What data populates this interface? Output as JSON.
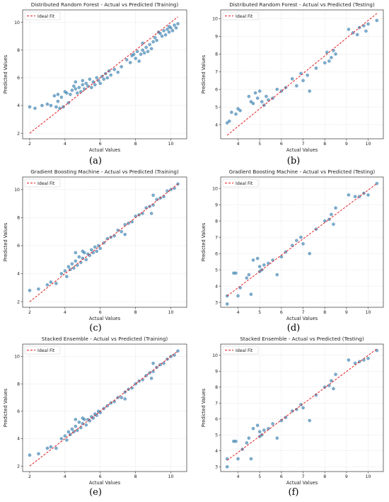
{
  "legend_label": "Ideal Fit",
  "colors": {
    "points": "#2b7bb0",
    "ideal_fit": "#e41a1c"
  },
  "chart_data": [
    {
      "type": "scatter",
      "panel_label": "(a)",
      "title": "Distributed Random Forest - Actual vs Predicted (Training)",
      "xlabel": "Actual Values",
      "ylabel": "Predicted Values",
      "xlim": [
        1.6,
        10.9
      ],
      "ylim": [
        1.6,
        10.9
      ],
      "xticks": [
        2,
        4,
        6,
        8,
        10
      ],
      "yticks": [
        2,
        4,
        6,
        8,
        10
      ],
      "grid": true,
      "legend": "top-left",
      "ideal_fit": [
        [
          2,
          2
        ],
        [
          10.4,
          10.4
        ]
      ],
      "points": [
        [
          2.0,
          3.9
        ],
        [
          2.3,
          3.8
        ],
        [
          2.7,
          4.0
        ],
        [
          3.0,
          4.1
        ],
        [
          3.2,
          4.0
        ],
        [
          3.5,
          3.9
        ],
        [
          3.6,
          4.3
        ],
        [
          3.7,
          3.8
        ],
        [
          3.9,
          3.9
        ],
        [
          3.4,
          4.7
        ],
        [
          3.6,
          4.8
        ],
        [
          3.8,
          4.6
        ],
        [
          4.0,
          5.0
        ],
        [
          4.1,
          4.9
        ],
        [
          4.2,
          4.2
        ],
        [
          4.3,
          4.8
        ],
        [
          4.4,
          5.1
        ],
        [
          4.5,
          5.4
        ],
        [
          4.6,
          5.2
        ],
        [
          4.6,
          5.7
        ],
        [
          4.7,
          4.9
        ],
        [
          4.8,
          5.3
        ],
        [
          4.9,
          5.0
        ],
        [
          5.0,
          5.5
        ],
        [
          5.0,
          5.8
        ],
        [
          5.1,
          5.2
        ],
        [
          5.2,
          5.6
        ],
        [
          5.3,
          5.4
        ],
        [
          5.4,
          5.9
        ],
        [
          5.5,
          5.3
        ],
        [
          5.6,
          5.7
        ],
        [
          5.7,
          5.5
        ],
        [
          5.8,
          6.0
        ],
        [
          5.9,
          5.8
        ],
        [
          6.0,
          5.6
        ],
        [
          6.1,
          6.1
        ],
        [
          6.2,
          5.9
        ],
        [
          6.3,
          6.3
        ],
        [
          6.4,
          6.0
        ],
        [
          6.5,
          6.5
        ],
        [
          6.6,
          6.2
        ],
        [
          6.8,
          6.6
        ],
        [
          7.0,
          6.4
        ],
        [
          7.2,
          6.8
        ],
        [
          7.5,
          7.3
        ],
        [
          7.7,
          7.1
        ],
        [
          7.8,
          7.6
        ],
        [
          8.0,
          7.4
        ],
        [
          8.1,
          7.9
        ],
        [
          8.2,
          7.2
        ],
        [
          8.3,
          7.7
        ],
        [
          8.4,
          8.0
        ],
        [
          8.5,
          7.8
        ],
        [
          8.6,
          8.2
        ],
        [
          8.7,
          7.9
        ],
        [
          8.8,
          8.4
        ],
        [
          8.9,
          8.1
        ],
        [
          9.0,
          8.6
        ],
        [
          9.1,
          8.9
        ],
        [
          9.2,
          8.7
        ],
        [
          9.4,
          9.2
        ],
        [
          9.5,
          9.0
        ],
        [
          9.6,
          9.4
        ],
        [
          9.7,
          9.1
        ],
        [
          9.8,
          9.5
        ],
        [
          9.9,
          9.3
        ],
        [
          10.0,
          9.6
        ],
        [
          10.1,
          9.4
        ],
        [
          10.2,
          9.8
        ],
        [
          10.3,
          9.6
        ],
        [
          10.4,
          9.9
        ],
        [
          9.3,
          9.3
        ],
        [
          9.9,
          9.7
        ],
        [
          8.4,
          8.5
        ],
        [
          7.9,
          7.7
        ]
      ]
    },
    {
      "type": "scatter",
      "panel_label": "(b)",
      "title": "Distributed Random Forest - Actual vs Predicted (Testing)",
      "xlabel": "Actual Values",
      "ylabel": "Predicted Values",
      "xlim": [
        3.2,
        10.7
      ],
      "ylim": [
        3.2,
        10.5
      ],
      "xticks": [
        4,
        5,
        6,
        7,
        8,
        9,
        10
      ],
      "yticks": [
        4,
        5,
        6,
        7,
        8,
        9,
        10
      ],
      "grid": true,
      "legend": "top-left",
      "ideal_fit": [
        [
          3.5,
          3.4
        ],
        [
          10.4,
          10.3
        ]
      ],
      "points": [
        [
          3.5,
          4.1
        ],
        [
          3.6,
          4.2
        ],
        [
          3.7,
          4.7
        ],
        [
          3.9,
          4.6
        ],
        [
          4.0,
          4.9
        ],
        [
          4.1,
          4.8
        ],
        [
          4.5,
          5.6
        ],
        [
          4.6,
          5.3
        ],
        [
          4.7,
          5.2
        ],
        [
          4.8,
          5.8
        ],
        [
          4.9,
          5.5
        ],
        [
          5.0,
          5.9
        ],
        [
          5.1,
          5.3
        ],
        [
          5.2,
          5.1
        ],
        [
          5.3,
          5.6
        ],
        [
          5.4,
          5.4
        ],
        [
          5.6,
          5.5
        ],
        [
          5.8,
          6.0
        ],
        [
          6.0,
          5.9
        ],
        [
          6.2,
          6.1
        ],
        [
          6.5,
          6.6
        ],
        [
          6.7,
          6.2
        ],
        [
          6.9,
          6.9
        ],
        [
          7.0,
          6.5
        ],
        [
          7.2,
          6.8
        ],
        [
          7.3,
          5.9
        ],
        [
          7.6,
          7.2
        ],
        [
          8.0,
          7.5
        ],
        [
          8.1,
          8.1
        ],
        [
          8.2,
          7.6
        ],
        [
          8.3,
          7.8
        ],
        [
          8.4,
          8.2
        ],
        [
          8.5,
          8.0
        ],
        [
          9.1,
          9.4
        ],
        [
          9.3,
          9.2
        ],
        [
          9.5,
          9.1
        ],
        [
          9.6,
          9.5
        ],
        [
          9.8,
          9.6
        ],
        [
          9.9,
          9.3
        ],
        [
          10.0,
          9.7
        ],
        [
          10.4,
          9.9
        ]
      ]
    },
    {
      "type": "scatter",
      "panel_label": "(c)",
      "title": "Gradient Boosting Machine - Actual vs Predicted (Training)",
      "xlabel": "Actual Values",
      "ylabel": "Predicted Values",
      "xlim": [
        1.6,
        10.9
      ],
      "ylim": [
        1.6,
        10.9
      ],
      "xticks": [
        2,
        4,
        6,
        8,
        10
      ],
      "yticks": [
        2,
        4,
        6,
        8,
        10
      ],
      "grid": true,
      "legend": "top-left",
      "ideal_fit": [
        [
          2,
          2
        ],
        [
          10.4,
          10.4
        ]
      ],
      "points": [
        [
          2.0,
          2.8
        ],
        [
          2.5,
          2.9
        ],
        [
          3.0,
          3.2
        ],
        [
          3.2,
          3.4
        ],
        [
          3.5,
          3.3
        ],
        [
          3.8,
          4.0
        ],
        [
          4.0,
          4.2
        ],
        [
          4.1,
          3.8
        ],
        [
          4.2,
          4.5
        ],
        [
          4.3,
          4.3
        ],
        [
          4.4,
          4.7
        ],
        [
          4.5,
          4.4
        ],
        [
          4.6,
          4.9
        ],
        [
          4.7,
          4.6
        ],
        [
          4.8,
          5.2
        ],
        [
          4.9,
          4.8
        ],
        [
          5.0,
          5.1
        ],
        [
          5.1,
          5.5
        ],
        [
          5.2,
          5.0
        ],
        [
          5.3,
          5.4
        ],
        [
          5.4,
          5.3
        ],
        [
          5.5,
          5.7
        ],
        [
          5.6,
          5.5
        ],
        [
          5.7,
          5.9
        ],
        [
          5.8,
          5.6
        ],
        [
          5.9,
          6.0
        ],
        [
          6.0,
          5.8
        ],
        [
          6.2,
          6.2
        ],
        [
          6.4,
          6.5
        ],
        [
          6.6,
          6.6
        ],
        [
          6.8,
          6.7
        ],
        [
          7.0,
          7.1
        ],
        [
          7.2,
          7.0
        ],
        [
          7.4,
          7.5
        ],
        [
          7.6,
          7.6
        ],
        [
          7.8,
          7.7
        ],
        [
          8.0,
          8.1
        ],
        [
          8.2,
          8.2
        ],
        [
          8.4,
          8.3
        ],
        [
          8.6,
          8.7
        ],
        [
          8.8,
          8.8
        ],
        [
          9.0,
          8.9
        ],
        [
          9.2,
          9.3
        ],
        [
          9.4,
          9.4
        ],
        [
          9.6,
          9.5
        ],
        [
          9.8,
          9.9
        ],
        [
          10.0,
          10.0
        ],
        [
          10.2,
          10.1
        ],
        [
          10.4,
          10.4
        ],
        [
          4.6,
          5.5
        ],
        [
          5.0,
          5.6
        ],
        [
          7.4,
          6.8
        ],
        [
          9.0,
          9.6
        ],
        [
          8.9,
          8.3
        ]
      ]
    },
    {
      "type": "scatter",
      "panel_label": "(d)",
      "title": "Gradient Boosting Machine - Actual vs Predicted (Testing)",
      "xlabel": "Actual Values",
      "ylabel": "Predicted Values",
      "xlim": [
        3.2,
        10.7
      ],
      "ylim": [
        2.7,
        10.7
      ],
      "xticks": [
        4,
        5,
        6,
        7,
        8,
        9,
        10
      ],
      "yticks": [
        3,
        4,
        5,
        6,
        7,
        8,
        9,
        10
      ],
      "grid": true,
      "legend": "top-left",
      "ideal_fit": [
        [
          3.5,
          3.4
        ],
        [
          10.4,
          10.3
        ]
      ],
      "points": [
        [
          3.5,
          2.9
        ],
        [
          3.5,
          3.4
        ],
        [
          3.8,
          4.8
        ],
        [
          3.9,
          4.8
        ],
        [
          4.0,
          3.4
        ],
        [
          4.1,
          3.9
        ],
        [
          4.4,
          4.5
        ],
        [
          4.5,
          4.7
        ],
        [
          4.6,
          3.5
        ],
        [
          4.7,
          5.6
        ],
        [
          4.9,
          5.7
        ],
        [
          5.0,
          4.9
        ],
        [
          5.0,
          5.2
        ],
        [
          5.1,
          5.0
        ],
        [
          5.2,
          5.3
        ],
        [
          5.4,
          5.4
        ],
        [
          5.6,
          5.6
        ],
        [
          5.8,
          4.7
        ],
        [
          6.0,
          5.8
        ],
        [
          6.2,
          6.1
        ],
        [
          6.5,
          6.5
        ],
        [
          6.7,
          6.8
        ],
        [
          6.9,
          7.0
        ],
        [
          7.0,
          6.6
        ],
        [
          7.3,
          6.0
        ],
        [
          7.6,
          7.5
        ],
        [
          8.0,
          8.0
        ],
        [
          8.2,
          8.1
        ],
        [
          8.3,
          8.4
        ],
        [
          8.4,
          7.8
        ],
        [
          8.5,
          8.8
        ],
        [
          9.1,
          9.6
        ],
        [
          9.4,
          9.5
        ],
        [
          9.6,
          9.5
        ],
        [
          9.8,
          9.7
        ],
        [
          10.0,
          9.6
        ],
        [
          10.4,
          10.3
        ]
      ]
    },
    {
      "type": "scatter",
      "panel_label": "(e)",
      "title": "Stacked Ensemble - Actual vs Predicted (Training)",
      "xlabel": "Actual Values",
      "ylabel": "Predicted Values",
      "xlim": [
        1.6,
        10.9
      ],
      "ylim": [
        1.6,
        10.9
      ],
      "xticks": [
        2,
        4,
        6,
        8,
        10
      ],
      "yticks": [
        2,
        4,
        6,
        8,
        10
      ],
      "grid": true,
      "legend": "top-left",
      "ideal_fit": [
        [
          2,
          2
        ],
        [
          10.4,
          10.4
        ]
      ],
      "points": [
        [
          2.0,
          2.8
        ],
        [
          2.5,
          2.9
        ],
        [
          3.0,
          3.3
        ],
        [
          3.2,
          3.4
        ],
        [
          3.5,
          3.3
        ],
        [
          3.8,
          4.0
        ],
        [
          4.0,
          4.2
        ],
        [
          4.1,
          3.9
        ],
        [
          4.2,
          4.5
        ],
        [
          4.3,
          4.3
        ],
        [
          4.4,
          4.7
        ],
        [
          4.5,
          4.5
        ],
        [
          4.6,
          4.9
        ],
        [
          4.7,
          4.6
        ],
        [
          4.8,
          5.2
        ],
        [
          4.9,
          4.8
        ],
        [
          5.0,
          5.1
        ],
        [
          5.1,
          5.4
        ],
        [
          5.2,
          5.0
        ],
        [
          5.3,
          5.4
        ],
        [
          5.4,
          5.3
        ],
        [
          5.5,
          5.6
        ],
        [
          5.6,
          5.5
        ],
        [
          5.7,
          5.8
        ],
        [
          5.8,
          5.7
        ],
        [
          5.9,
          6.0
        ],
        [
          6.0,
          5.9
        ],
        [
          6.2,
          6.2
        ],
        [
          6.4,
          6.4
        ],
        [
          6.6,
          6.6
        ],
        [
          6.8,
          6.7
        ],
        [
          7.0,
          7.0
        ],
        [
          7.2,
          7.0
        ],
        [
          7.4,
          7.4
        ],
        [
          7.6,
          7.6
        ],
        [
          7.8,
          7.7
        ],
        [
          8.0,
          8.0
        ],
        [
          8.2,
          8.2
        ],
        [
          8.4,
          8.3
        ],
        [
          8.6,
          8.6
        ],
        [
          8.8,
          8.8
        ],
        [
          9.0,
          8.9
        ],
        [
          9.2,
          9.2
        ],
        [
          9.4,
          9.4
        ],
        [
          9.6,
          9.5
        ],
        [
          9.8,
          9.8
        ],
        [
          10.0,
          10.0
        ],
        [
          10.2,
          10.1
        ],
        [
          10.4,
          10.4
        ],
        [
          4.6,
          5.4
        ],
        [
          5.0,
          5.5
        ],
        [
          7.4,
          6.9
        ],
        [
          9.0,
          9.5
        ],
        [
          8.9,
          8.4
        ]
      ]
    },
    {
      "type": "scatter",
      "panel_label": "(f)",
      "title": "Stacked Ensemble - Actual vs Predicted (Testing)",
      "xlabel": "Actual Values",
      "ylabel": "Predicted Values",
      "xlim": [
        3.2,
        10.7
      ],
      "ylim": [
        2.7,
        10.7
      ],
      "xticks": [
        4,
        5,
        6,
        7,
        8,
        9,
        10
      ],
      "yticks": [
        3,
        4,
        5,
        6,
        7,
        8,
        9,
        10
      ],
      "grid": true,
      "legend": "top-left",
      "ideal_fit": [
        [
          3.5,
          3.4
        ],
        [
          10.4,
          10.4
        ]
      ],
      "points": [
        [
          3.5,
          3.0
        ],
        [
          3.5,
          3.5
        ],
        [
          3.8,
          4.6
        ],
        [
          3.9,
          4.6
        ],
        [
          4.0,
          3.5
        ],
        [
          4.2,
          4.1
        ],
        [
          4.4,
          4.5
        ],
        [
          4.5,
          4.8
        ],
        [
          4.6,
          3.5
        ],
        [
          4.7,
          5.4
        ],
        [
          4.9,
          5.6
        ],
        [
          5.0,
          4.9
        ],
        [
          5.0,
          5.2
        ],
        [
          5.1,
          5.0
        ],
        [
          5.2,
          5.3
        ],
        [
          5.4,
          5.4
        ],
        [
          5.6,
          5.7
        ],
        [
          5.8,
          4.8
        ],
        [
          6.0,
          5.9
        ],
        [
          6.2,
          6.1
        ],
        [
          6.5,
          6.5
        ],
        [
          6.7,
          6.6
        ],
        [
          6.9,
          6.9
        ],
        [
          7.0,
          6.7
        ],
        [
          7.3,
          5.9
        ],
        [
          7.6,
          7.5
        ],
        [
          8.0,
          8.0
        ],
        [
          8.2,
          8.1
        ],
        [
          8.3,
          8.4
        ],
        [
          8.4,
          7.9
        ],
        [
          8.5,
          8.8
        ],
        [
          9.1,
          9.7
        ],
        [
          9.4,
          9.5
        ],
        [
          9.6,
          9.6
        ],
        [
          9.8,
          9.7
        ],
        [
          10.0,
          9.8
        ],
        [
          10.4,
          10.3
        ]
      ]
    }
  ]
}
